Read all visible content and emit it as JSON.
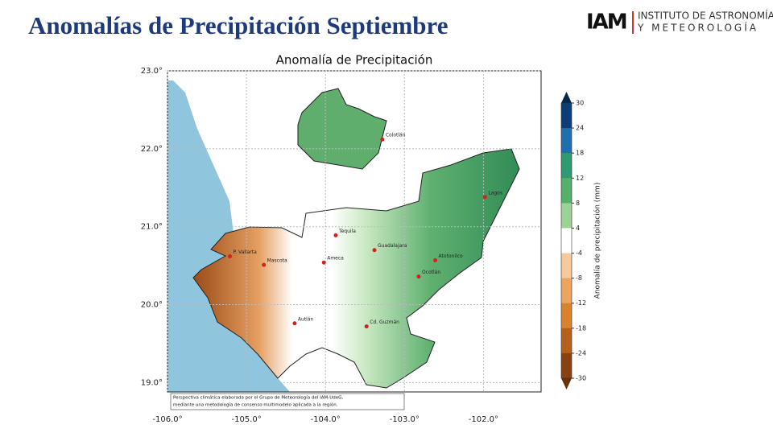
{
  "header": {
    "title": "Anomalías de Precipitación Septiembre",
    "logo": "IAM",
    "institute_line1": "INSTITUTO DE ASTRONOMÍA",
    "institute_line2": "Y METEOROLOGÍA"
  },
  "map": {
    "title": "Anomalía de Precipitación",
    "xlim": [
      -106.0,
      -101.27
    ],
    "ylim": [
      18.88,
      23.0
    ],
    "xticks": [
      {
        "value": -106,
        "label": "-106.0°"
      },
      {
        "value": -105,
        "label": "-105.0°"
      },
      {
        "value": -104,
        "label": "-104.0°"
      },
      {
        "value": -103,
        "label": "-103.0°"
      },
      {
        "value": -102,
        "label": "-102.0°"
      }
    ],
    "yticks": [
      {
        "value": 23,
        "label": "23.0°"
      },
      {
        "value": 22,
        "label": "22.0°"
      },
      {
        "value": 21,
        "label": "21.0°"
      },
      {
        "value": 20,
        "label": "20.0°"
      },
      {
        "value": 19,
        "label": "19.0°"
      }
    ],
    "grid": true,
    "cities": [
      {
        "name": "P. Vallarta",
        "lon": -105.21,
        "lat": 20.62
      },
      {
        "name": "Mascota",
        "lon": -104.78,
        "lat": 20.51
      },
      {
        "name": "Ameca",
        "lon": -104.02,
        "lat": 20.54
      },
      {
        "name": "Tequila",
        "lon": -103.87,
        "lat": 20.89
      },
      {
        "name": "Guadalajara",
        "lon": -103.38,
        "lat": 20.7
      },
      {
        "name": "Colotlán",
        "lon": -103.28,
        "lat": 22.12
      },
      {
        "name": "Lagos",
        "lon": -101.98,
        "lat": 21.38
      },
      {
        "name": "Atotonilco",
        "lon": -102.61,
        "lat": 20.57
      },
      {
        "name": "Ocotlán",
        "lon": -102.82,
        "lat": 20.36
      },
      {
        "name": "Autlán",
        "lon": -104.39,
        "lat": 19.76
      },
      {
        "name": "Cd. Guzmán",
        "lon": -103.48,
        "lat": 19.72
      }
    ],
    "colorbar": {
      "label": "Anomalía de precipitación (mm)",
      "ticks": [
        30,
        24,
        18,
        12,
        8,
        4,
        -4,
        -8,
        -12,
        -18,
        -24,
        -30
      ],
      "colors": [
        "#0b3d78",
        "#1f6fb0",
        "#2e9a72",
        "#54b06a",
        "#9bd395",
        "#ffffff",
        "#f6c89a",
        "#eea35e",
        "#d9822b",
        "#b5601a",
        "#8a4010"
      ]
    },
    "footnote": [
      "Perspectiva climática elaborada por el Grupo de Meteorología del IAM-UdeG,",
      "mediante una metodología de consenso multimodelo aplicada a la región."
    ]
  }
}
